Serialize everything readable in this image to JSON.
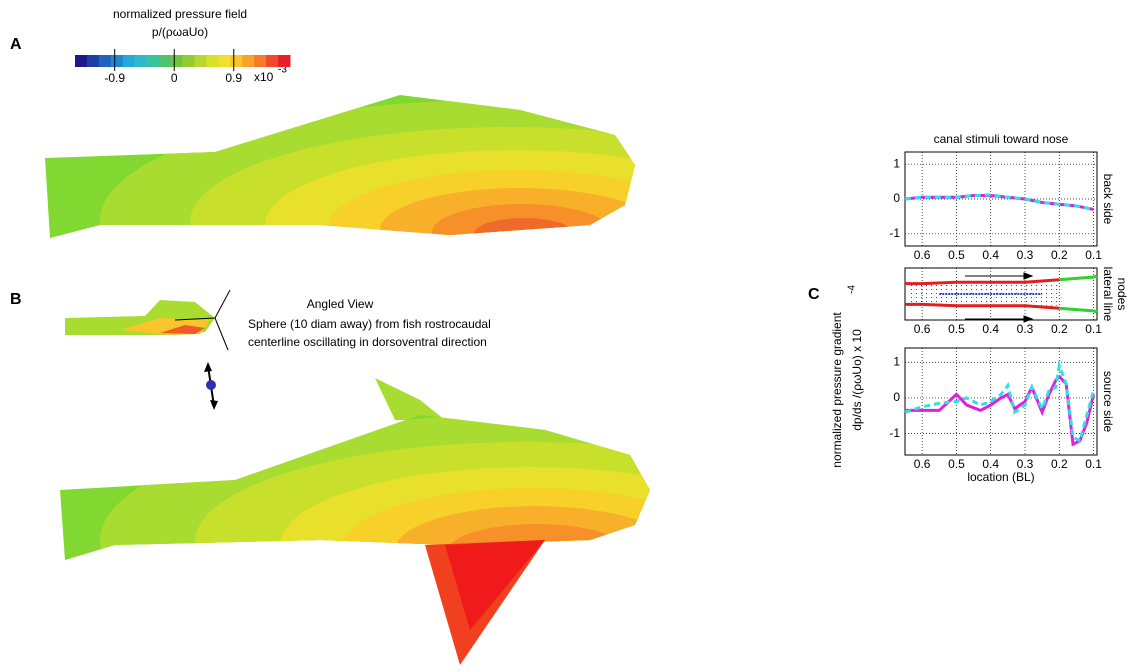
{
  "panel_labels": [
    "A",
    "B",
    "C"
  ],
  "colorbar": {
    "title": "normalized pressure field",
    "subtitle": "p/(ρωaUo)",
    "lim": [
      -1.5,
      1.75
    ],
    "ticks": [
      -0.9,
      0,
      0.9
    ],
    "multiplier": "x10",
    "exponent": "-3",
    "colors": [
      "#1a1a8c",
      "#1f3fa8",
      "#1f63bf",
      "#1f87cf",
      "#26a8d9",
      "#2fb8c8",
      "#39c2a0",
      "#4fc270",
      "#6fc43f",
      "#96cc33",
      "#b8d62e",
      "#d9e02b",
      "#f2e12a",
      "#f8c62a",
      "#f8a22a",
      "#f57a2a",
      "#f04a2a",
      "#e8202a"
    ]
  },
  "angled_view": {
    "title": "Angled View",
    "lines": [
      "Sphere (10 diam away) from fish rostrocaudal",
      "centerline oscillating in dorsoventral direction"
    ]
  },
  "panel_c": {
    "ylabel": [
      "normalized pressure gradient",
      "dp/ds /(ρωUo) x 10"
    ],
    "ylabel_exponent": "-4",
    "xlabel": "location (BL)"
  },
  "chart_data": [
    {
      "type": "line",
      "title": "canal stimuli toward nose",
      "side_label": [
        "back side"
      ],
      "x": [
        0.65,
        0.6,
        0.55,
        0.5,
        0.45,
        0.4,
        0.35,
        0.3,
        0.25,
        0.2,
        0.15,
        0.1
      ],
      "xlim": [
        0.65,
        0.09
      ],
      "xticks": [
        0.6,
        0.5,
        0.4,
        0.3,
        0.2,
        0.1
      ],
      "ylim": [
        -1.35,
        1.35
      ],
      "yticks": [
        -1,
        0,
        1
      ],
      "grid": true,
      "series": [
        {
          "color": "#e020e0",
          "dashed": false,
          "values": [
            0,
            0.05,
            0.05,
            0.05,
            0.1,
            0.1,
            0.05,
            0,
            -0.1,
            -0.15,
            -0.2,
            -0.3
          ]
        },
        {
          "color": "#30e0e0",
          "dashed": true,
          "values": [
            0,
            0.05,
            0.05,
            0.05,
            0.1,
            0.12,
            0.05,
            0,
            -0.1,
            -0.15,
            -0.2,
            -0.3
          ]
        }
      ]
    },
    {
      "type": "nodes",
      "side_label": [
        "lateral line",
        "nodes"
      ],
      "x": [
        0.65,
        0.6,
        0.5,
        0.4,
        0.3,
        0.25,
        0.2,
        0.15,
        0.1,
        0.09
      ],
      "xlim": [
        0.65,
        0.09
      ],
      "xticks": [
        0.6,
        0.5,
        0.4,
        0.3,
        0.2,
        0.1
      ],
      "ylim": [
        -1,
        1
      ],
      "grid": true,
      "series": [
        {
          "color": "#e02020",
          "values": [
            0.4,
            0.4,
            0.45,
            0.45,
            0.45,
            0.5,
            0.55,
            null,
            null,
            null
          ]
        },
        {
          "color": "#e02020",
          "values": [
            -0.4,
            -0.4,
            -0.45,
            -0.45,
            -0.45,
            -0.5,
            -0.55,
            null,
            null,
            null
          ]
        },
        {
          "color": "#30d030",
          "values": [
            null,
            null,
            null,
            null,
            null,
            null,
            0.55,
            0.6,
            0.65,
            0.7
          ]
        },
        {
          "color": "#30d030",
          "values": [
            null,
            null,
            null,
            null,
            null,
            null,
            -0.55,
            -0.6,
            -0.65,
            -0.7
          ]
        }
      ]
    },
    {
      "type": "line",
      "side_label": [
        "source side"
      ],
      "x": [
        0.65,
        0.6,
        0.55,
        0.5,
        0.47,
        0.43,
        0.4,
        0.37,
        0.35,
        0.33,
        0.3,
        0.28,
        0.25,
        0.23,
        0.21,
        0.2,
        0.18,
        0.16,
        0.14,
        0.12,
        0.1
      ],
      "xlim": [
        0.65,
        0.09
      ],
      "xticks": [
        0.6,
        0.5,
        0.4,
        0.3,
        0.2,
        0.1
      ],
      "ylim": [
        -1.6,
        1.4
      ],
      "yticks": [
        -1,
        0,
        1
      ],
      "grid": true,
      "series": [
        {
          "color": "#e020e0",
          "dashed": false,
          "values": [
            -0.35,
            -0.35,
            -0.35,
            0.1,
            -0.2,
            -0.35,
            -0.2,
            0,
            0.1,
            -0.3,
            -0.1,
            0.3,
            -0.4,
            0.1,
            0.5,
            0.6,
            0.4,
            -1.3,
            -1.2,
            -0.7,
            0.1
          ]
        },
        {
          "color": "#30e0e0",
          "dashed": true,
          "values": [
            -0.4,
            -0.25,
            -0.15,
            -0.1,
            0,
            -0.2,
            -0.1,
            0.1,
            0.35,
            -0.4,
            -0.2,
            0.3,
            -0.3,
            0.2,
            0.3,
            0.9,
            0.4,
            -1.1,
            -1.2,
            -0.5,
            0.2
          ]
        }
      ]
    }
  ]
}
